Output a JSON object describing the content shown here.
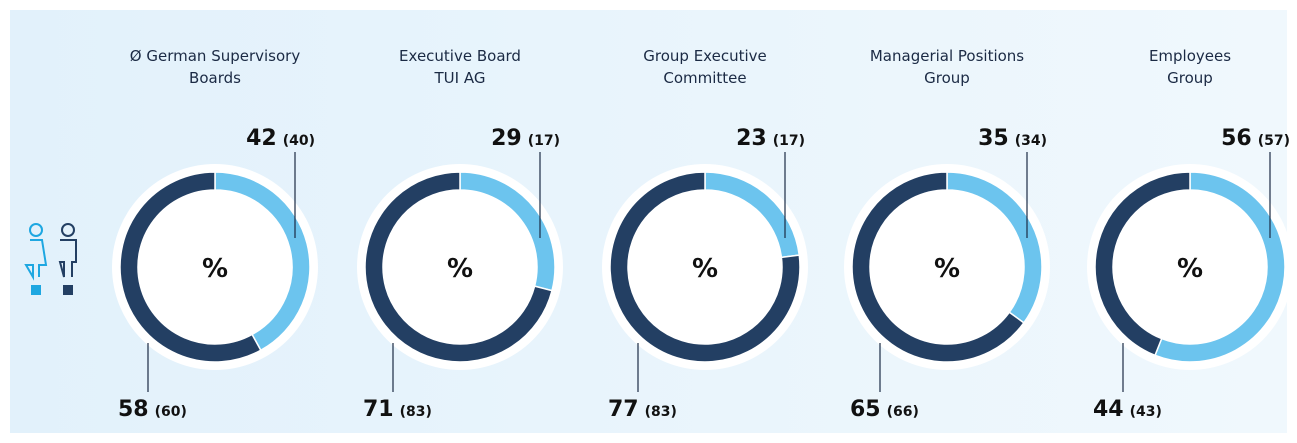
{
  "chart_data": [
    {
      "type": "donut",
      "title": "Ø German Supervisory\nBoards",
      "center_label": "%",
      "values": [
        42,
        58
      ],
      "prior_values": [
        40,
        60
      ],
      "prior_value_labels": [
        "(40)",
        "(60)"
      ],
      "colors": [
        "#6cc4ee",
        "#233f63"
      ]
    },
    {
      "type": "donut",
      "title": "Executive Board\nTUI AG",
      "center_label": "%",
      "values": [
        29,
        71
      ],
      "prior_values": [
        17,
        83
      ],
      "prior_value_labels": [
        "(17)",
        "(83)"
      ],
      "colors": [
        "#6cc4ee",
        "#233f63"
      ]
    },
    {
      "type": "donut",
      "title": "Group Executive\nCommittee",
      "center_label": "%",
      "values": [
        23,
        77
      ],
      "prior_values": [
        17,
        83
      ],
      "prior_value_labels": [
        "(17)",
        "(83)"
      ],
      "colors": [
        "#6cc4ee",
        "#233f63"
      ]
    },
    {
      "type": "donut",
      "title": "Managerial Positions\nGroup",
      "center_label": "%",
      "values": [
        35,
        65
      ],
      "prior_values": [
        34,
        66
      ],
      "prior_value_labels": [
        "(34)",
        "(66)"
      ],
      "colors": [
        "#6cc4ee",
        "#233f63"
      ]
    },
    {
      "type": "donut",
      "title": "Employees\nGroup",
      "center_label": "%",
      "values": [
        56,
        44
      ],
      "prior_values": [
        57,
        43
      ],
      "prior_value_labels": [
        "(57)",
        "(43)"
      ],
      "colors": [
        "#6cc4ee",
        "#233f63"
      ]
    }
  ]
}
